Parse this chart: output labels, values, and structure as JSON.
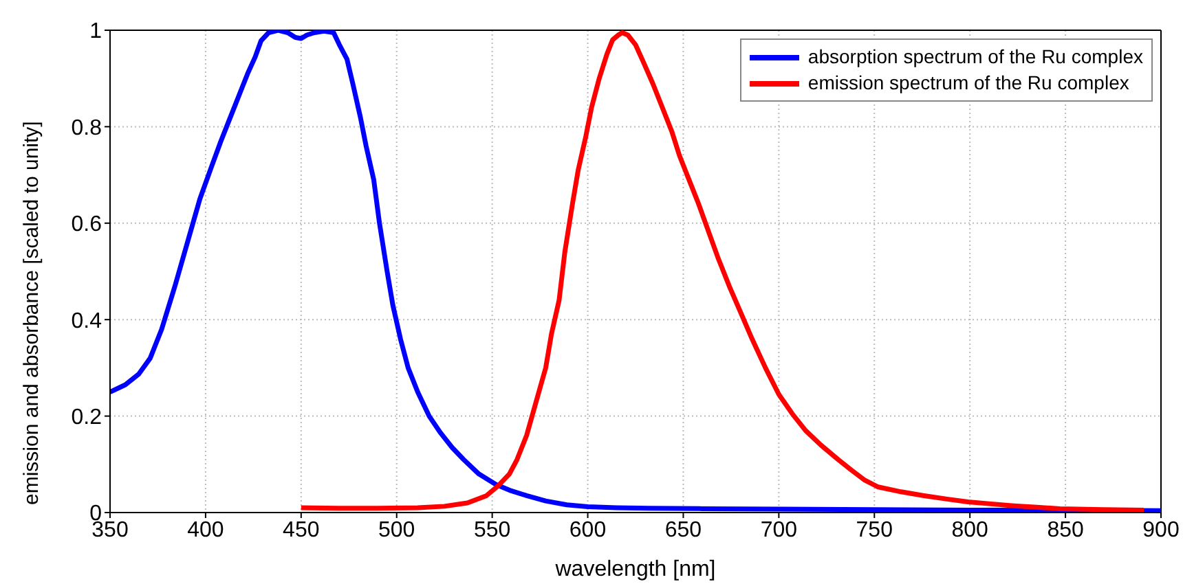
{
  "chart_data": {
    "type": "line",
    "xlabel": "wavelength [nm]",
    "ylabel": "emission and absorbance [scaled to unity]",
    "xlim": [
      350,
      900
    ],
    "ylim": [
      0,
      1
    ],
    "xticks": [
      350,
      400,
      450,
      500,
      550,
      600,
      650,
      700,
      750,
      800,
      850,
      900
    ],
    "yticks": [
      0,
      0.2,
      0.4,
      0.6,
      0.8,
      1
    ],
    "grid": true,
    "legend": "top right",
    "marker": "none",
    "line_style": "solid",
    "series": [
      {
        "name": "absorption spectrum of the Ru complex",
        "color": "#0000ff",
        "x": [
          350,
          358,
          365,
          371,
          377,
          384,
          391,
          397,
          403,
          408,
          413,
          418,
          422,
          426,
          429,
          433,
          438,
          443,
          447,
          450,
          453,
          457,
          462,
          467,
          470,
          474,
          477,
          481,
          484,
          488,
          491,
          495,
          498,
          502,
          506,
          511,
          517,
          523,
          529,
          535,
          543,
          552,
          560,
          568,
          578,
          589,
          600,
          615,
          632,
          660,
          700,
          750,
          800,
          850,
          900
        ],
        "values": [
          0.25,
          0.265,
          0.287,
          0.32,
          0.38,
          0.47,
          0.567,
          0.65,
          0.716,
          0.77,
          0.82,
          0.87,
          0.91,
          0.945,
          0.978,
          0.995,
          1.0,
          0.995,
          0.985,
          0.983,
          0.99,
          0.995,
          0.998,
          0.995,
          0.97,
          0.94,
          0.89,
          0.82,
          0.76,
          0.69,
          0.6,
          0.5,
          0.43,
          0.36,
          0.3,
          0.25,
          0.2,
          0.165,
          0.135,
          0.11,
          0.08,
          0.058,
          0.045,
          0.035,
          0.024,
          0.016,
          0.012,
          0.01,
          0.009,
          0.008,
          0.007,
          0.006,
          0.005,
          0.005,
          0.004
        ]
      },
      {
        "name": "emission spectrum of the Ru complex",
        "color": "#ff0000",
        "x": [
          450,
          470,
          490,
          511,
          525,
          537,
          547,
          553,
          559,
          563,
          568,
          573,
          578,
          581,
          585,
          588,
          592,
          595,
          599,
          602,
          606,
          610,
          613,
          616,
          618,
          621,
          625,
          629,
          634,
          639,
          644,
          648,
          653,
          658,
          663,
          668,
          674,
          680,
          686,
          693,
          700,
          707,
          714,
          722,
          731,
          738,
          745,
          752,
          764,
          776,
          788,
          799,
          811,
          823,
          835,
          847,
          870,
          891
        ],
        "values": [
          0.01,
          0.009,
          0.009,
          0.01,
          0.013,
          0.02,
          0.035,
          0.055,
          0.08,
          0.11,
          0.16,
          0.23,
          0.3,
          0.37,
          0.44,
          0.54,
          0.64,
          0.71,
          0.78,
          0.84,
          0.9,
          0.95,
          0.98,
          0.99,
          0.995,
          0.99,
          0.97,
          0.935,
          0.89,
          0.84,
          0.79,
          0.74,
          0.69,
          0.64,
          0.585,
          0.53,
          0.47,
          0.415,
          0.36,
          0.3,
          0.245,
          0.205,
          0.17,
          0.14,
          0.11,
          0.088,
          0.067,
          0.053,
          0.043,
          0.035,
          0.028,
          0.022,
          0.018,
          0.014,
          0.011,
          0.008,
          0.006,
          0.005
        ]
      }
    ]
  }
}
